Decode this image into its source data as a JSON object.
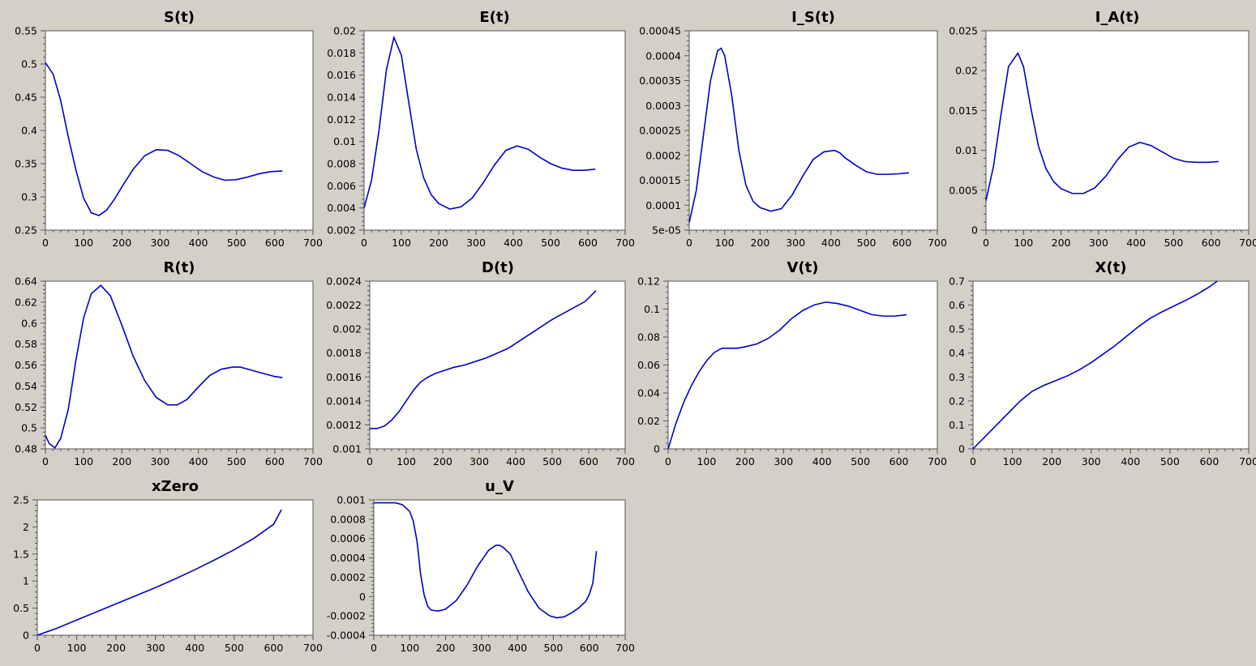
{
  "window": {
    "background": "#d4d0c8"
  },
  "colors": {
    "line": "#0000cc",
    "axis": "#555555",
    "plot_bg": "#ffffff"
  },
  "chart_data": [
    {
      "type": "line",
      "title": "S(t)",
      "xlim": [
        0,
        700
      ],
      "ylim": [
        0.25,
        0.55
      ],
      "xticks": [
        "0",
        "100",
        "200",
        "300",
        "400",
        "500",
        "600",
        "700"
      ],
      "yticks": [
        "0.25",
        "0.3",
        "0.35",
        "0.4",
        "0.45",
        "0.5",
        "0.55"
      ],
      "x": [
        0,
        20,
        40,
        60,
        80,
        100,
        120,
        140,
        160,
        180,
        200,
        230,
        260,
        290,
        320,
        350,
        380,
        410,
        440,
        470,
        500,
        530,
        560,
        590,
        620
      ],
      "y": [
        0.502,
        0.485,
        0.445,
        0.39,
        0.34,
        0.298,
        0.276,
        0.272,
        0.28,
        0.296,
        0.315,
        0.342,
        0.362,
        0.371,
        0.37,
        0.362,
        0.35,
        0.338,
        0.33,
        0.325,
        0.326,
        0.33,
        0.335,
        0.338,
        0.339
      ]
    },
    {
      "type": "line",
      "title": "E(t)",
      "xlim": [
        0,
        700
      ],
      "ylim": [
        0.002,
        0.02
      ],
      "xticks": [
        "0",
        "100",
        "200",
        "300",
        "400",
        "500",
        "600",
        "700"
      ],
      "yticks": [
        "0.002",
        "0.004",
        "0.006",
        "0.008",
        "0.01",
        "0.012",
        "0.014",
        "0.016",
        "0.018",
        "0.02"
      ],
      "x": [
        0,
        20,
        40,
        60,
        80,
        100,
        120,
        140,
        160,
        180,
        200,
        230,
        260,
        290,
        320,
        350,
        380,
        410,
        440,
        470,
        500,
        530,
        560,
        590,
        620
      ],
      "y": [
        0.004,
        0.0065,
        0.011,
        0.0165,
        0.0194,
        0.0178,
        0.0135,
        0.0093,
        0.0067,
        0.0052,
        0.0044,
        0.0039,
        0.0041,
        0.0049,
        0.0063,
        0.0079,
        0.0092,
        0.0096,
        0.0093,
        0.0086,
        0.008,
        0.0076,
        0.0074,
        0.0074,
        0.0075
      ]
    },
    {
      "type": "line",
      "title": "I_S(t)",
      "xlim": [
        0,
        700
      ],
      "ylim": [
        5e-05,
        0.00045
      ],
      "xticks": [
        "0",
        "100",
        "200",
        "300",
        "400",
        "500",
        "600",
        "700"
      ],
      "yticks": [
        "5e-05",
        "0.0001",
        "0.00015",
        "0.0002",
        "0.00025",
        "0.0003",
        "0.00035",
        "0.0004",
        "0.00045"
      ],
      "x": [
        0,
        20,
        40,
        60,
        80,
        90,
        100,
        120,
        140,
        160,
        180,
        200,
        230,
        260,
        290,
        320,
        350,
        380,
        410,
        425,
        440,
        470,
        500,
        530,
        560,
        590,
        620
      ],
      "y": [
        6.5e-05,
        0.00013,
        0.00024,
        0.00035,
        0.00041,
        0.000415,
        0.0004,
        0.00032,
        0.00021,
        0.00014,
        0.000108,
        9.5e-05,
        8.8e-05,
        9.3e-05,
        0.00012,
        0.000158,
        0.000192,
        0.000207,
        0.00021,
        0.000205,
        0.000195,
        0.00018,
        0.000167,
        0.000162,
        0.000162,
        0.000163,
        0.000165
      ]
    },
    {
      "type": "line",
      "title": "I_A(t)",
      "xlim": [
        0,
        700
      ],
      "ylim": [
        0,
        0.025
      ],
      "xticks": [
        "0",
        "100",
        "200",
        "300",
        "400",
        "500",
        "600",
        "700"
      ],
      "yticks": [
        "0",
        "0.005",
        "0.01",
        "0.015",
        "0.02",
        "0.025"
      ],
      "x": [
        0,
        20,
        40,
        60,
        85,
        100,
        120,
        140,
        160,
        180,
        200,
        230,
        260,
        290,
        320,
        350,
        380,
        410,
        440,
        470,
        500,
        530,
        560,
        590,
        620
      ],
      "y": [
        0.0037,
        0.008,
        0.0145,
        0.0205,
        0.0222,
        0.0205,
        0.0152,
        0.0105,
        0.0077,
        0.0061,
        0.0052,
        0.0046,
        0.0046,
        0.0053,
        0.0068,
        0.0088,
        0.0104,
        0.011,
        0.0106,
        0.0098,
        0.009,
        0.0086,
        0.0085,
        0.0085,
        0.0086
      ]
    },
    {
      "type": "line",
      "title": "R(t)",
      "xlim": [
        0,
        700
      ],
      "ylim": [
        0.48,
        0.64
      ],
      "xticks": [
        "0",
        "100",
        "200",
        "300",
        "400",
        "500",
        "600",
        "700"
      ],
      "yticks": [
        "0.48",
        "0.5",
        "0.52",
        "0.54",
        "0.56",
        "0.58",
        "0.6",
        "0.62",
        "0.64"
      ],
      "x": [
        0,
        10,
        25,
        40,
        60,
        80,
        100,
        120,
        145,
        170,
        200,
        230,
        260,
        290,
        320,
        345,
        370,
        400,
        430,
        460,
        490,
        510,
        540,
        570,
        600,
        620
      ],
      "y": [
        0.493,
        0.485,
        0.481,
        0.49,
        0.518,
        0.565,
        0.605,
        0.628,
        0.636,
        0.626,
        0.598,
        0.568,
        0.545,
        0.529,
        0.522,
        0.522,
        0.527,
        0.539,
        0.55,
        0.556,
        0.558,
        0.558,
        0.555,
        0.552,
        0.549,
        0.548
      ]
    },
    {
      "type": "line",
      "title": "D(t)",
      "xlim": [
        0,
        700
      ],
      "ylim": [
        0.001,
        0.0024
      ],
      "xticks": [
        "0",
        "100",
        "200",
        "300",
        "400",
        "500",
        "600",
        "700"
      ],
      "yticks": [
        "0.001",
        "0.0012",
        "0.0014",
        "0.0016",
        "0.0018",
        "0.002",
        "0.0022",
        "0.0024"
      ],
      "x": [
        0,
        20,
        40,
        60,
        80,
        100,
        120,
        140,
        160,
        180,
        200,
        230,
        260,
        290,
        320,
        350,
        380,
        410,
        440,
        470,
        500,
        530,
        560,
        590,
        620
      ],
      "y": [
        0.00117,
        0.00117,
        0.00119,
        0.00124,
        0.00131,
        0.0014,
        0.00149,
        0.00156,
        0.0016,
        0.00163,
        0.00165,
        0.00168,
        0.0017,
        0.00173,
        0.00176,
        0.0018,
        0.00184,
        0.0019,
        0.00196,
        0.00202,
        0.00208,
        0.00213,
        0.00218,
        0.00223,
        0.00232
      ]
    },
    {
      "type": "line",
      "title": "V(t)",
      "xlim": [
        0,
        700
      ],
      "ylim": [
        0,
        0.12
      ],
      "xticks": [
        "0",
        "100",
        "200",
        "300",
        "400",
        "500",
        "600",
        "700"
      ],
      "yticks": [
        "0",
        "0.02",
        "0.04",
        "0.06",
        "0.08",
        "0.1",
        "0.12"
      ],
      "x": [
        0,
        20,
        40,
        60,
        80,
        100,
        120,
        140,
        160,
        180,
        200,
        230,
        260,
        290,
        320,
        350,
        380,
        410,
        440,
        470,
        500,
        530,
        560,
        590,
        620
      ],
      "y": [
        0,
        0.018,
        0.033,
        0.045,
        0.055,
        0.063,
        0.069,
        0.072,
        0.072,
        0.072,
        0.073,
        0.075,
        0.079,
        0.085,
        0.093,
        0.099,
        0.103,
        0.105,
        0.104,
        0.102,
        0.099,
        0.096,
        0.095,
        0.095,
        0.096
      ]
    },
    {
      "type": "line",
      "title": "X(t)",
      "xlim": [
        0,
        700
      ],
      "ylim": [
        0,
        0.7
      ],
      "xticks": [
        "0",
        "100",
        "200",
        "300",
        "400",
        "500",
        "600",
        "700"
      ],
      "yticks": [
        "0",
        "0.1",
        "0.2",
        "0.3",
        "0.4",
        "0.5",
        "0.6",
        "0.7"
      ],
      "x": [
        0,
        30,
        60,
        90,
        120,
        150,
        180,
        210,
        240,
        270,
        300,
        330,
        360,
        390,
        420,
        450,
        480,
        510,
        540,
        570,
        600,
        620
      ],
      "y": [
        0,
        0.05,
        0.1,
        0.15,
        0.2,
        0.24,
        0.265,
        0.285,
        0.305,
        0.33,
        0.36,
        0.395,
        0.43,
        0.47,
        0.51,
        0.545,
        0.572,
        0.596,
        0.62,
        0.646,
        0.676,
        0.7
      ]
    },
    {
      "type": "line",
      "title": "xZero",
      "xlim": [
        0,
        700
      ],
      "ylim": [
        0,
        2.5
      ],
      "xticks": [
        "0",
        "100",
        "200",
        "300",
        "400",
        "500",
        "600",
        "700"
      ],
      "yticks": [
        "0",
        "0.5",
        "1",
        "1.5",
        "2",
        "2.5"
      ],
      "x": [
        0,
        50,
        100,
        150,
        200,
        250,
        300,
        350,
        400,
        450,
        500,
        550,
        600,
        620
      ],
      "y": [
        0,
        0.13,
        0.28,
        0.43,
        0.58,
        0.73,
        0.88,
        1.04,
        1.21,
        1.39,
        1.58,
        1.79,
        2.05,
        2.32
      ]
    },
    {
      "type": "line",
      "title": "u_V",
      "xlim": [
        0,
        700
      ],
      "ylim": [
        -0.0004,
        0.001
      ],
      "xticks": [
        "0",
        "100",
        "200",
        "300",
        "400",
        "500",
        "600",
        "700"
      ],
      "yticks": [
        "-0.0004",
        "-0.0002",
        "0",
        "0.0002",
        "0.0004",
        "0.0006",
        "0.0008",
        "0.001"
      ],
      "x": [
        0,
        20,
        40,
        60,
        80,
        100,
        110,
        120,
        125,
        130,
        140,
        150,
        160,
        180,
        200,
        230,
        260,
        290,
        320,
        340,
        350,
        360,
        380,
        400,
        430,
        460,
        490,
        510,
        530,
        550,
        570,
        590,
        600,
        610,
        620
      ],
      "y": [
        0.00097,
        0.00097,
        0.00097,
        0.00097,
        0.00095,
        0.00088,
        0.00078,
        0.00058,
        0.00042,
        0.00024,
        2e-05,
        -0.0001,
        -0.00014,
        -0.00015,
        -0.00013,
        -4e-05,
        0.00012,
        0.00032,
        0.00048,
        0.00053,
        0.00053,
        0.00051,
        0.00044,
        0.00028,
        5e-05,
        -0.00012,
        -0.0002,
        -0.00022,
        -0.00021,
        -0.00017,
        -0.00012,
        -5e-05,
        2e-05,
        0.00014,
        0.00047
      ]
    }
  ]
}
